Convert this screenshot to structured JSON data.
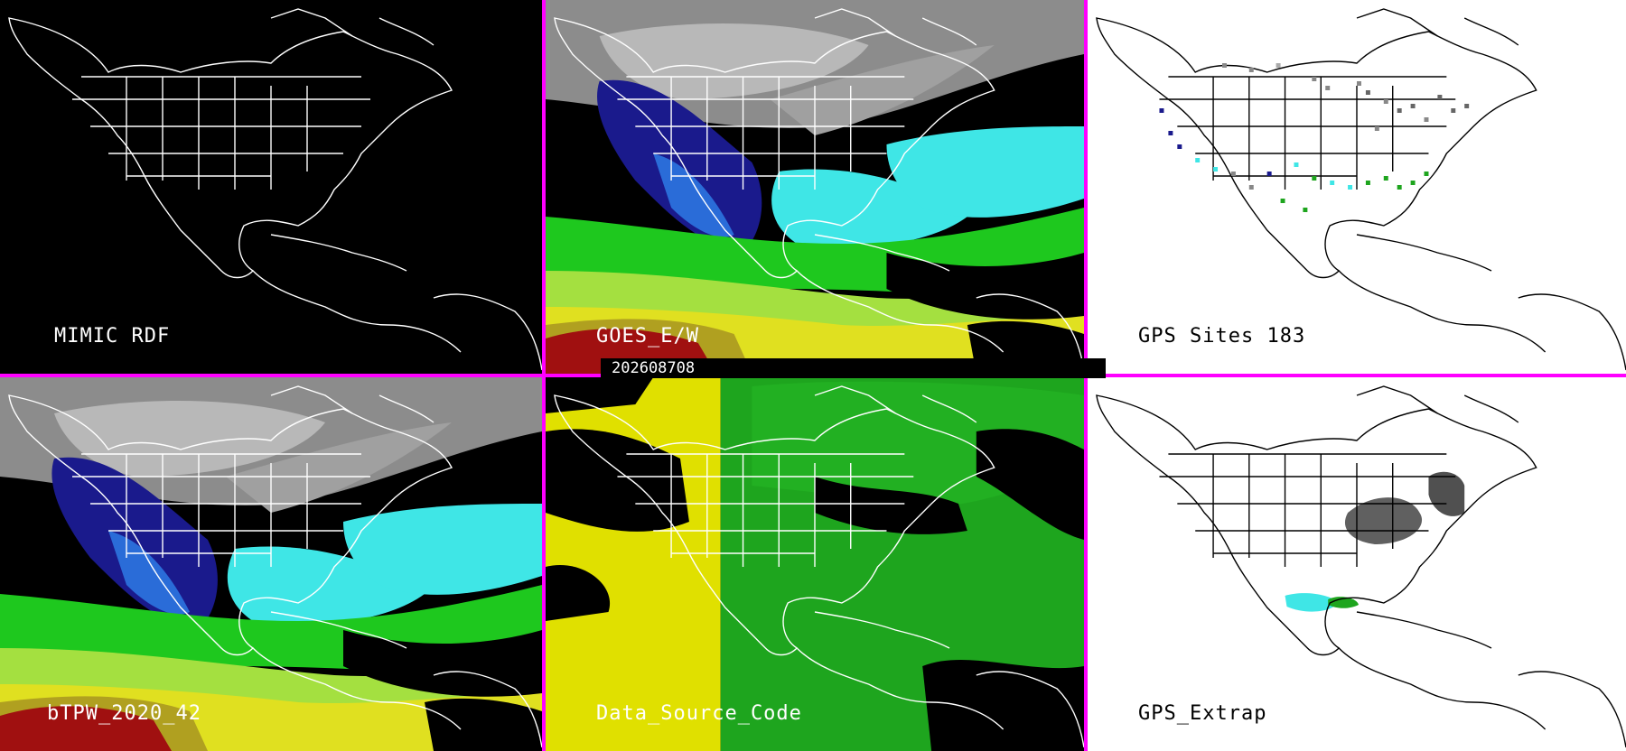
{
  "panels": [
    {
      "id": "p1",
      "label": "MIMIC RDF",
      "bg": "#000000",
      "kind": "blank"
    },
    {
      "id": "p2",
      "label": "GOES_E/W",
      "bg": "#000000",
      "kind": "tpw"
    },
    {
      "id": "p3",
      "label": "GPS Sites   183",
      "bg": "#ffffff",
      "kind": "gps"
    },
    {
      "id": "p4",
      "label": "bTPW_2020_42",
      "bg": "#000000",
      "kind": "tpw"
    },
    {
      "id": "p5",
      "label": "Data_Source_Code",
      "bg": "#000000",
      "kind": "source"
    },
    {
      "id": "p6",
      "label": "GPS_Extrap",
      "bg": "#ffffff",
      "kind": "gpsx"
    }
  ],
  "timestamp": "202608708",
  "colors": {
    "divider": "#ff00ff",
    "coast_on_dark": "#ffffff",
    "coast_on_light": "#000000",
    "tpw_scale": [
      "#a0a0a0",
      "#1a1a8c",
      "#2a6cd8",
      "#3fe6e6",
      "#1ec81e",
      "#a4e040",
      "#e0e020",
      "#b0a020",
      "#a01010"
    ],
    "source_yellow": "#e0e000",
    "source_green": "#1ea51e"
  }
}
